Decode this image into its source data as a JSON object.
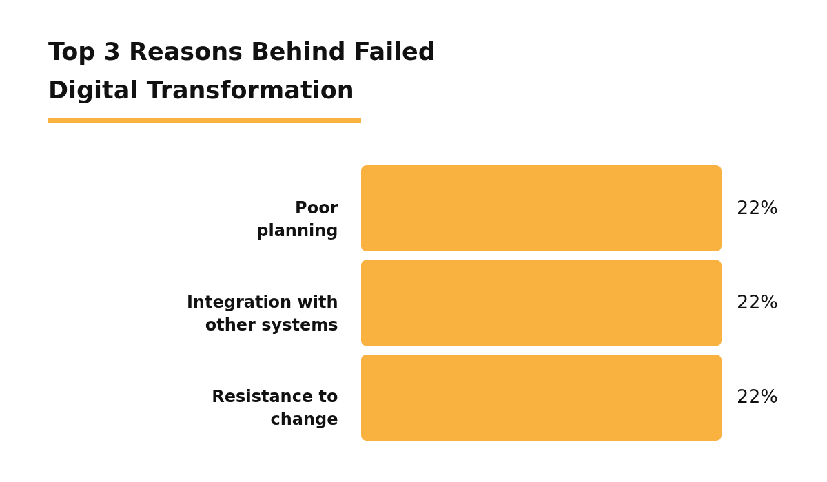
{
  "chart_data": {
    "type": "bar",
    "orientation": "horizontal",
    "title": "Top 3 Reasons Behind Failed Digital Transformation",
    "categories": [
      "Poor planning",
      "Integration with other systems",
      "Resistance to change"
    ],
    "values": [
      22,
      22,
      22
    ],
    "value_labels": [
      "22%",
      "22%",
      "22%"
    ],
    "color": "#f9b13f",
    "tick_labels": "y"
  }
}
